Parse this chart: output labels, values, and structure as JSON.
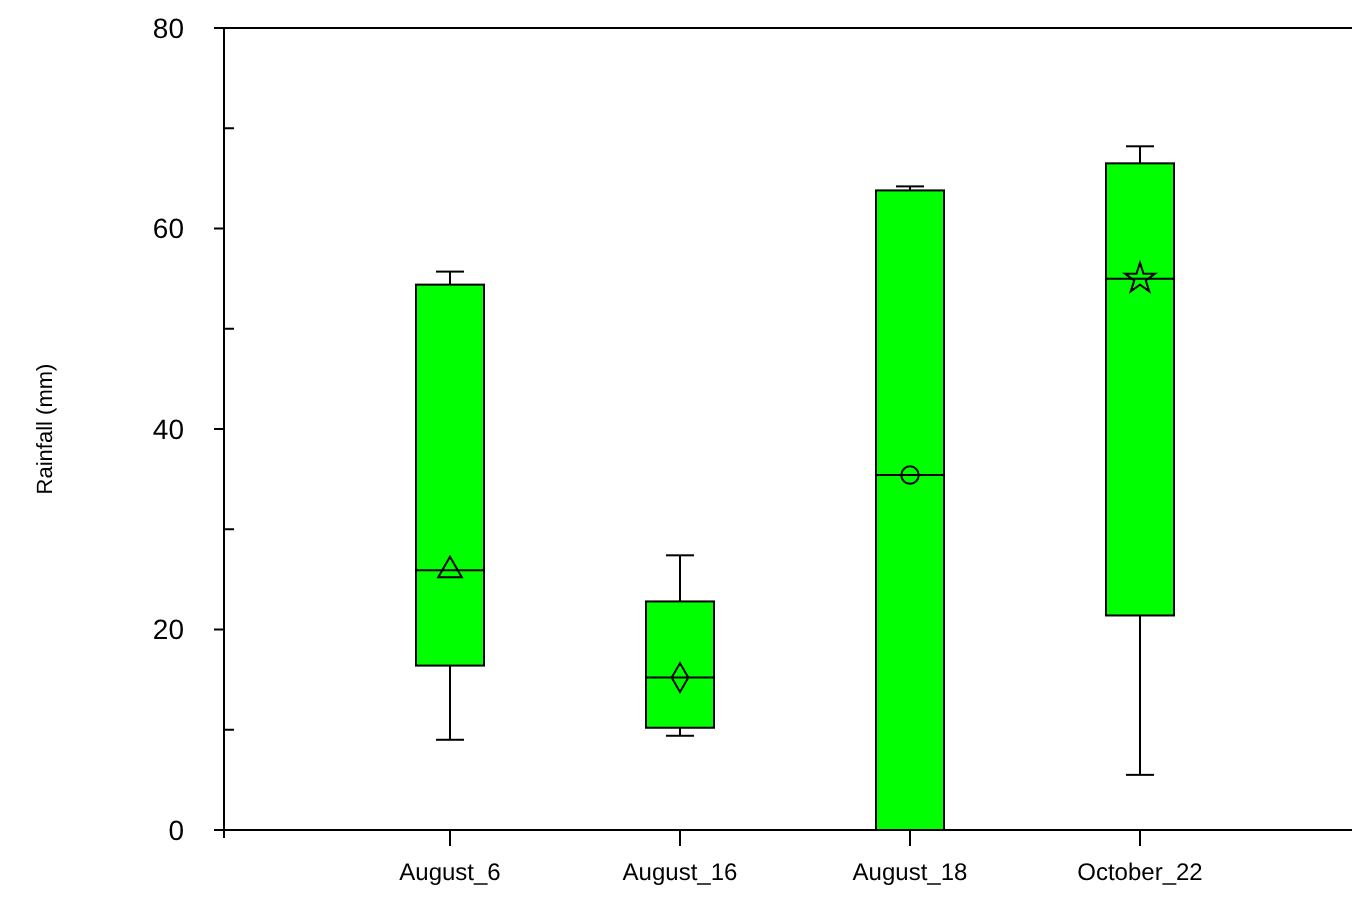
{
  "chart_data": {
    "type": "box",
    "ylabel": "Rainfall (mm)",
    "categories": [
      "August_6",
      "August_16",
      "August_18",
      "October_22"
    ],
    "ylim": [
      0,
      80
    ],
    "yticks": [
      0,
      {
        "value": 10,
        "label": null
      },
      20,
      {
        "value": 30,
        "label": null
      },
      40,
      {
        "value": 50,
        "label": null
      },
      60,
      {
        "value": 70,
        "label": null
      },
      80
    ],
    "grid": false,
    "series": [
      {
        "color": "#00ff00",
        "marker": "triangle",
        "boxes": [
          {
            "low": 9,
            "q1": 16.4,
            "median": 25.9,
            "q3": 54.4,
            "high": 55.7,
            "mean": 25.9
          },
          null,
          null,
          null
        ]
      },
      {
        "color": "#00ff00",
        "marker": "diamond",
        "boxes": [
          null,
          {
            "low": 9.4,
            "q1": 10.2,
            "median": 15.2,
            "q3": 22.8,
            "high": 27.4,
            "mean": 15.2
          },
          null,
          null
        ]
      },
      {
        "color": "#00ff00",
        "marker": "circle",
        "boxes": [
          null,
          null,
          {
            "low": 0,
            "q1": 0,
            "median": 35.4,
            "q3": 63.8,
            "high": 64.2,
            "mean": 35.4
          },
          null
        ]
      },
      {
        "color": "#00ff00",
        "marker": "star",
        "boxes": [
          null,
          null,
          null,
          {
            "low": 5.5,
            "q1": 21.4,
            "median": 55,
            "q3": 66.5,
            "high": 68.2,
            "mean": 55
          }
        ]
      }
    ]
  }
}
